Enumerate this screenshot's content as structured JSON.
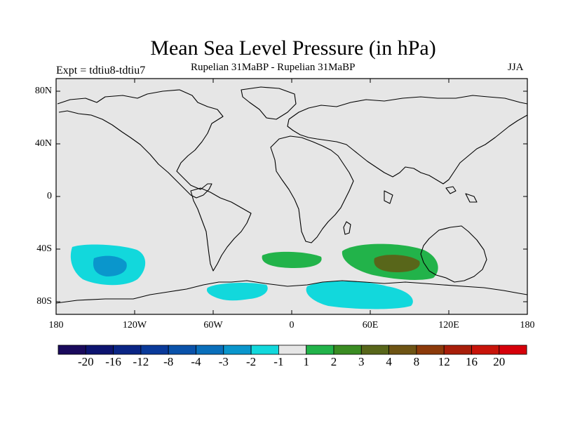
{
  "title": "Mean Sea Level Pressure (in hPa)",
  "experiment": "Expt = tdtiu8-tdtiu7",
  "period": "Rupelian  31MaBP - Rupelian  31MaBP",
  "season": "JJA",
  "lat_labels": [
    "80N",
    "40N",
    "0",
    "40S",
    "80S"
  ],
  "lon_labels": [
    "180",
    "120W",
    "60W",
    "0",
    "60E",
    "120E",
    "180"
  ],
  "colorbar": {
    "labels": [
      "-20",
      "-16",
      "-12",
      "-8",
      "-4",
      "-3",
      "-2",
      "-1",
      "1",
      "2",
      "3",
      "4",
      "8",
      "12",
      "16",
      "20"
    ],
    "colors": [
      "#1a0a5c",
      "#0d1470",
      "#0a2585",
      "#0a3a9a",
      "#0a52aa",
      "#0a6fbb",
      "#0a96cc",
      "#12d8dc",
      "#e6e6e6",
      "#22b34a",
      "#3a8c22",
      "#58661a",
      "#6e5414",
      "#8c3a0a",
      "#a81e0a",
      "#c8140a",
      "#d6000a"
    ]
  },
  "map_background": "#e6e6e6",
  "anomalies": [
    {
      "name": "south-pacific-low",
      "value": "-2 to -4",
      "lon": -135,
      "lat": -50
    },
    {
      "name": "south-atlantic-high",
      "value": "1 to 2",
      "lon": 5,
      "lat": -47
    },
    {
      "name": "south-indian-high",
      "value": "2 to 4",
      "lon": 75,
      "lat": -50
    },
    {
      "name": "antarctic-lows",
      "value": "-1 to -2",
      "lon": 50,
      "lat": -78
    }
  ]
}
